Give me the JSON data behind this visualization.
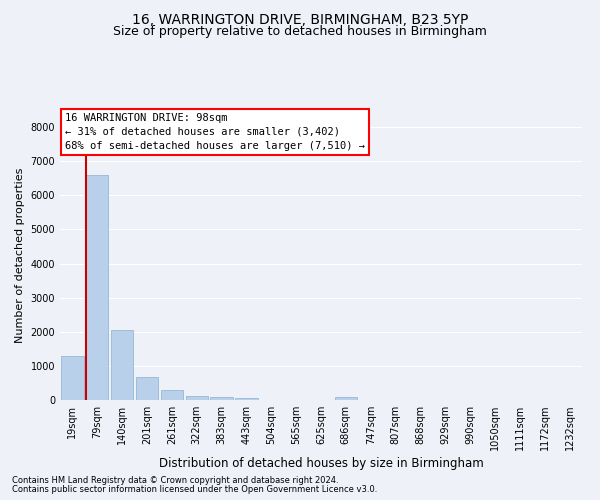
{
  "title": "16, WARRINGTON DRIVE, BIRMINGHAM, B23 5YP",
  "subtitle": "Size of property relative to detached houses in Birmingham",
  "xlabel": "Distribution of detached houses by size in Birmingham",
  "ylabel": "Number of detached properties",
  "footnote1": "Contains HM Land Registry data © Crown copyright and database right 2024.",
  "footnote2": "Contains public sector information licensed under the Open Government Licence v3.0.",
  "bar_labels": [
    "19sqm",
    "79sqm",
    "140sqm",
    "201sqm",
    "261sqm",
    "322sqm",
    "383sqm",
    "443sqm",
    "504sqm",
    "565sqm",
    "625sqm",
    "686sqm",
    "747sqm",
    "807sqm",
    "868sqm",
    "929sqm",
    "990sqm",
    "1050sqm",
    "1111sqm",
    "1172sqm",
    "1232sqm"
  ],
  "bar_values": [
    1300,
    6600,
    2050,
    680,
    280,
    130,
    75,
    55,
    0,
    0,
    0,
    80,
    0,
    0,
    0,
    0,
    0,
    0,
    0,
    0,
    0
  ],
  "bar_color": "#b8d0ea",
  "bar_edge_color": "#8ab0d0",
  "vline_color": "#cc0000",
  "vline_pos": 1.0,
  "ylim": [
    0,
    8500
  ],
  "yticks": [
    0,
    1000,
    2000,
    3000,
    4000,
    5000,
    6000,
    7000,
    8000
  ],
  "annotation_text": "16 WARRINGTON DRIVE: 98sqm\n← 31% of detached houses are smaller (3,402)\n68% of semi-detached houses are larger (7,510) →",
  "bg_color": "#eef2f8",
  "grid_color": "#ffffff",
  "title_fontsize": 10,
  "subtitle_fontsize": 9,
  "annot_fontsize": 7.5,
  "ylabel_fontsize": 8,
  "xlabel_fontsize": 8.5,
  "tick_fontsize": 7,
  "footnote_fontsize": 6
}
